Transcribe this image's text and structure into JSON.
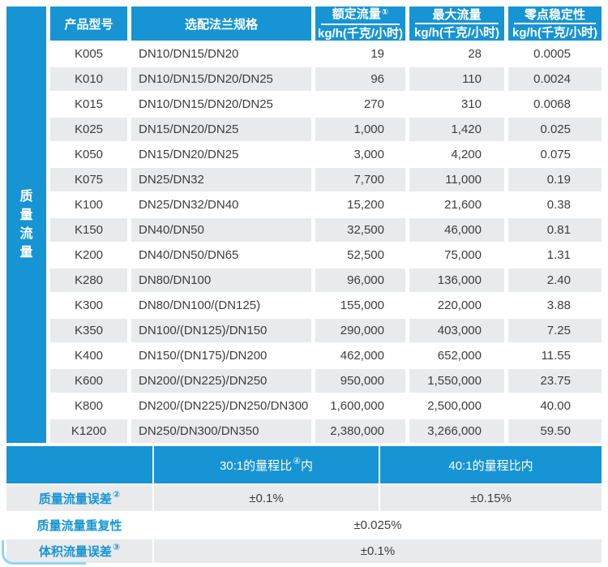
{
  "colors": {
    "accent_blue": "#1794d3",
    "row_gray": "#e9eaec",
    "text_dark": "#3d3d3d",
    "corner_cyan": "#8bd8f3"
  },
  "sidebar": {
    "label": "质量流量"
  },
  "table": {
    "headers": {
      "model": "产品型号",
      "flange": "选配法兰规格",
      "rated": {
        "top": "额定流量",
        "sup": "①",
        "unit": "kg/h(千克/小时)"
      },
      "max": {
        "top": "最大流量",
        "sup": "",
        "unit": "kg/h(千克/小时)"
      },
      "zero": {
        "top": "零点稳定性",
        "sup": "",
        "unit": "kg/h(千克/小时)"
      }
    },
    "rows": [
      {
        "model": "K005",
        "flange": "DN10/DN15/DN20",
        "rated": "19",
        "max": "28",
        "zero": "0.0005"
      },
      {
        "model": "K010",
        "flange": "DN10/DN15/DN20/DN25",
        "rated": "96",
        "max": "110",
        "zero": "0.0024"
      },
      {
        "model": "K015",
        "flange": "DN10/DN15/DN20/DN25",
        "rated": "270",
        "max": "310",
        "zero": "0.0068"
      },
      {
        "model": "K025",
        "flange": "DN15/DN20/DN25",
        "rated": "1,000",
        "max": "1,420",
        "zero": "0.025"
      },
      {
        "model": "K050",
        "flange": "DN15/DN20/DN25",
        "rated": "3,000",
        "max": "4,200",
        "zero": "0.075"
      },
      {
        "model": "K075",
        "flange": "DN25/DN32",
        "rated": "7,700",
        "max": "11,000",
        "zero": "0.19"
      },
      {
        "model": "K100",
        "flange": "DN25/DN32/DN40",
        "rated": "15,200",
        "max": "21,600",
        "zero": "0.38"
      },
      {
        "model": "K150",
        "flange": "DN40/DN50",
        "rated": "32,500",
        "max": "46,000",
        "zero": "0.81"
      },
      {
        "model": "K200",
        "flange": "DN40/DN50/DN65",
        "rated": "52,500",
        "max": "75,000",
        "zero": "1.31"
      },
      {
        "model": "K280",
        "flange": "DN80/DN100",
        "rated": "96,000",
        "max": "136,000",
        "zero": "2.40"
      },
      {
        "model": "K300",
        "flange": "DN80/DN100/(DN125)",
        "rated": "155,000",
        "max": "220,000",
        "zero": "3.88"
      },
      {
        "model": "K350",
        "flange": "DN100/(DN125)/DN150",
        "rated": "290,000",
        "max": "403,000",
        "zero": "7.25"
      },
      {
        "model": "K400",
        "flange": "DN150/(DN175)/DN200",
        "rated": "462,000",
        "max": "652,000",
        "zero": "11.55"
      },
      {
        "model": "K600",
        "flange": "DN200/(DN225)/DN250",
        "rated": "950,000",
        "max": "1,550,000",
        "zero": "23.75"
      },
      {
        "model": "K800",
        "flange": "DN200/(DN225)/DN250/DN300",
        "rated": "1,600,000",
        "max": "2,500,000",
        "zero": "40.00"
      },
      {
        "model": "K1200",
        "flange": "DN250/DN300/DN350",
        "rated": "2,380,000",
        "max": "3,266,000",
        "zero": "59.50"
      }
    ]
  },
  "footer": {
    "band": {
      "col1_prefix": "30:1的量程比",
      "col1_sup": "④",
      "col1_suffix": "内",
      "col2": "40:1的量程比内"
    },
    "rows": [
      {
        "label": "质量流量误差",
        "sup": "②",
        "values": [
          "±0.1%",
          "±0.15%"
        ]
      },
      {
        "label": "质量流量重复性",
        "sup": "",
        "values": [
          "±0.025%"
        ]
      },
      {
        "label": "体积流量误差",
        "sup": "③",
        "values": [
          "±0.1%"
        ]
      }
    ]
  }
}
